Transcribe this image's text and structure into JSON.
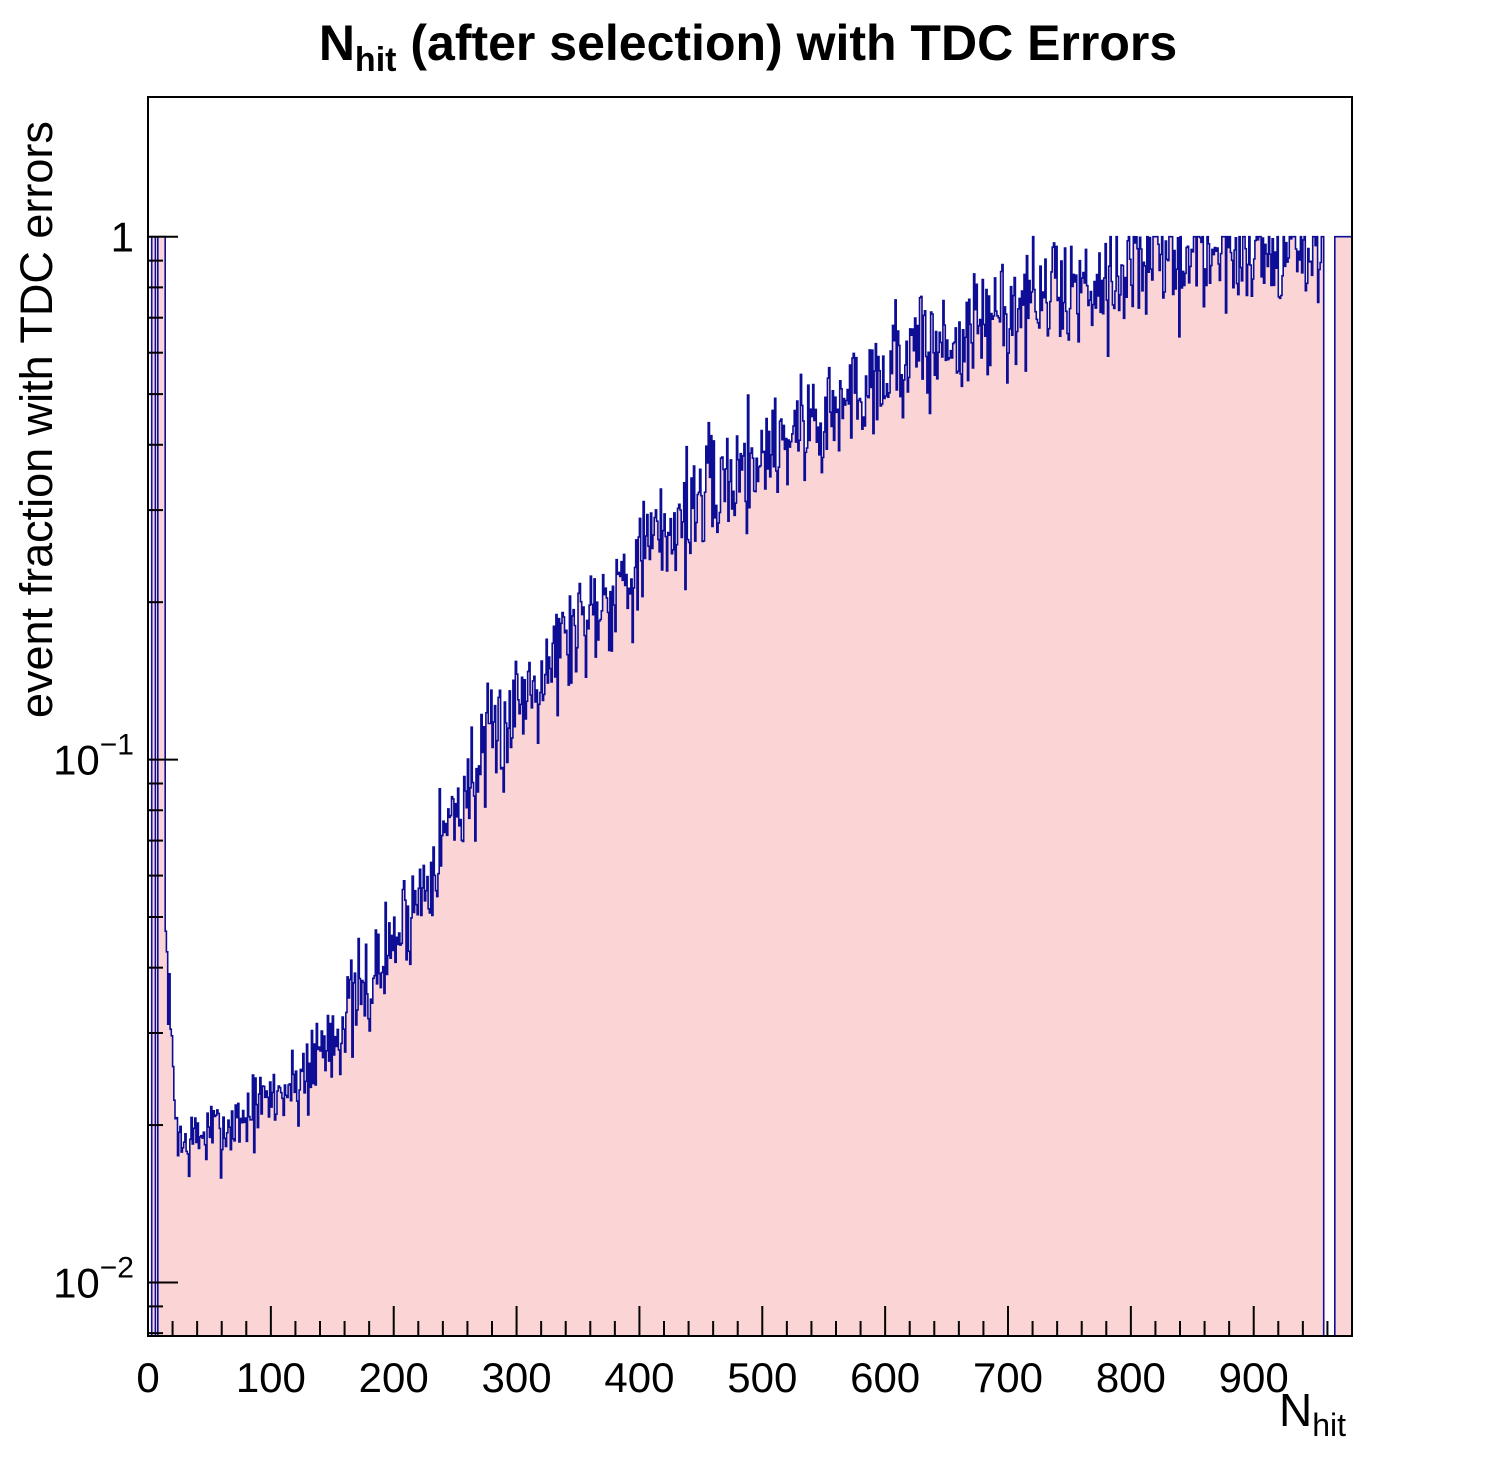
{
  "title": {
    "pre": "N",
    "sub": "hit",
    "post": " (after selection) with TDC Errors"
  },
  "axes": {
    "ylabel": "event fraction with TDC errors",
    "xlabel_pre": "N",
    "xlabel_sub": "hit",
    "x_ticks": [
      0,
      100,
      200,
      300,
      400,
      500,
      600,
      700,
      800,
      900
    ],
    "y_ticks": [
      {
        "value": 1,
        "base": "1",
        "exp": ""
      },
      {
        "value": 0.1,
        "base": "10",
        "exp": "−1"
      },
      {
        "value": 0.01,
        "base": "10",
        "exp": "−2"
      }
    ]
  },
  "style": {
    "background": "#ffffff",
    "fill": "#fbd5d5",
    "line": "#0d0d96",
    "frame": "#000000"
  },
  "chart_data": {
    "type": "area",
    "title": "N_hit (after selection) with TDC Errors",
    "xlabel": "N_hit",
    "ylabel": "event fraction with TDC errors",
    "y_scale": "log",
    "grid": false,
    "legend": "none",
    "xlim": [
      0,
      980
    ],
    "ylim_log": [
      0.0079,
      1.85
    ],
    "bin_width": 1,
    "regions": [
      {
        "from": 0,
        "to": 2,
        "value": 0
      },
      {
        "from": 3,
        "to": 5,
        "value": 1
      },
      {
        "from": 6,
        "to": 7,
        "value": 0
      },
      {
        "from": 8,
        "to": 13,
        "value": 1
      },
      {
        "from": 956,
        "to": 956,
        "value": 1
      },
      {
        "from": 957,
        "to": 965,
        "value": 0
      },
      {
        "from": 966,
        "to": 979,
        "value": 1
      }
    ],
    "trend_anchors": [
      [
        14,
        0.045
      ],
      [
        18,
        0.03
      ],
      [
        22,
        0.021
      ],
      [
        28,
        0.018
      ],
      [
        40,
        0.019
      ],
      [
        60,
        0.0195
      ],
      [
        80,
        0.021
      ],
      [
        100,
        0.0225
      ],
      [
        120,
        0.024
      ],
      [
        140,
        0.028
      ],
      [
        160,
        0.032
      ],
      [
        180,
        0.037
      ],
      [
        200,
        0.045
      ],
      [
        220,
        0.055
      ],
      [
        240,
        0.072
      ],
      [
        260,
        0.088
      ],
      [
        280,
        0.105
      ],
      [
        300,
        0.13
      ],
      [
        320,
        0.15
      ],
      [
        340,
        0.17
      ],
      [
        360,
        0.195
      ],
      [
        380,
        0.215
      ],
      [
        400,
        0.24
      ],
      [
        420,
        0.27
      ],
      [
        440,
        0.3
      ],
      [
        460,
        0.325
      ],
      [
        480,
        0.355
      ],
      [
        500,
        0.385
      ],
      [
        520,
        0.42
      ],
      [
        540,
        0.44
      ],
      [
        560,
        0.46
      ],
      [
        580,
        0.52
      ],
      [
        600,
        0.56
      ],
      [
        620,
        0.6
      ],
      [
        640,
        0.61
      ],
      [
        660,
        0.63
      ],
      [
        680,
        0.68
      ],
      [
        700,
        0.72
      ],
      [
        720,
        0.75
      ],
      [
        740,
        0.78
      ],
      [
        760,
        0.8
      ],
      [
        780,
        0.85
      ],
      [
        800,
        0.88
      ],
      [
        820,
        0.9
      ],
      [
        840,
        0.92
      ],
      [
        860,
        0.93
      ],
      [
        880,
        0.94
      ],
      [
        900,
        0.95
      ],
      [
        920,
        0.94
      ],
      [
        940,
        0.95
      ]
    ],
    "noise_sigma_log10": [
      {
        "upto": 120,
        "sigma": 0.035
      },
      {
        "upto": 240,
        "sigma": 0.05
      },
      {
        "upto": 980,
        "sigma": 0.058
      }
    ],
    "seed": 7
  }
}
